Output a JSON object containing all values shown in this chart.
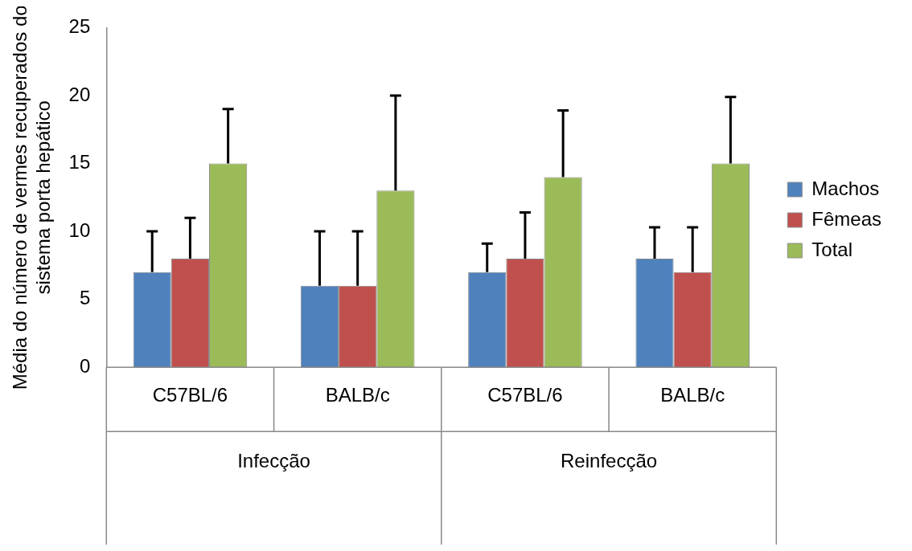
{
  "chart_data": {
    "type": "bar",
    "ylabel": "Média do número de vermes recuperados do sistema porta hepático",
    "categories": [
      "C57BL/6",
      "BALB/c",
      "C57BL/6",
      "BALB/c"
    ],
    "annotations": [
      "Infecção",
      "Reinfecção"
    ],
    "series": [
      {
        "name": "Machos",
        "color": "#4f81bd",
        "values": [
          7,
          6,
          7,
          8
        ],
        "errors": [
          [
            7,
            10
          ],
          [
            6,
            10
          ],
          [
            7,
            9.1
          ],
          [
            8,
            10.3
          ]
        ]
      },
      {
        "name": "Fêmeas",
        "color": "#c0504d",
        "values": [
          8,
          6,
          8,
          7
        ],
        "errors": [
          [
            8,
            11
          ],
          [
            6,
            10
          ],
          [
            8,
            11.4
          ],
          [
            7,
            10.3
          ]
        ]
      },
      {
        "name": "Total",
        "color": "#9bbb59",
        "values": [
          15,
          13,
          14,
          15
        ],
        "errors": [
          [
            15,
            19
          ],
          [
            13,
            20
          ],
          [
            14,
            18.9
          ],
          [
            15,
            19.9
          ]
        ]
      }
    ],
    "ylim": [
      0,
      25
    ],
    "yticks": [
      0,
      5,
      10,
      15,
      20,
      25
    ],
    "grid": false,
    "legend": "right"
  }
}
